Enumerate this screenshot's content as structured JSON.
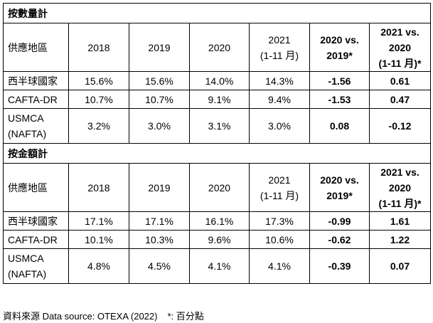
{
  "sections": [
    {
      "title": "按數量計",
      "header": {
        "region": "供應地區",
        "y2018": "2018",
        "y2019": "2019",
        "y2020": "2020",
        "y2021_line1": "2021",
        "y2021_line2": "(1-11 月)",
        "cmp1_line1": "2020 vs.",
        "cmp1_line2": "2019*",
        "cmp2_line1": "2021 vs.",
        "cmp2_line2": "2020",
        "cmp2_line3": "(1-11 月)*"
      },
      "rows": [
        {
          "region": "西半球國家",
          "y2018": "15.6%",
          "y2019": "15.6%",
          "y2020": "14.0%",
          "y2021": "14.3%",
          "cmp1": "-1.56",
          "cmp2": "0.61"
        },
        {
          "region": "CAFTA-DR",
          "y2018": "10.7%",
          "y2019": "10.7%",
          "y2020": "9.1%",
          "y2021": "9.4%",
          "cmp1": "-1.53",
          "cmp2": "0.47"
        },
        {
          "region_line1": "USMCA",
          "region_line2": "(NAFTA)",
          "y2018": "3.2%",
          "y2019": "3.0%",
          "y2020": "3.1%",
          "y2021": "3.0%",
          "cmp1": "0.08",
          "cmp2": "-0.12"
        }
      ]
    },
    {
      "title": "按金額計",
      "header": {
        "region": "供應地區",
        "y2018": "2018",
        "y2019": "2019",
        "y2020": "2020",
        "y2021_line1": "2021",
        "y2021_line2": "(1-11 月)",
        "cmp1_line1": "2020 vs.",
        "cmp1_line2": "2019*",
        "cmp2_line1": "2021 vs.",
        "cmp2_line2": "2020",
        "cmp2_line3": "(1-11 月)*"
      },
      "rows": [
        {
          "region": "西半球國家",
          "y2018": "17.1%",
          "y2019": "17.1%",
          "y2020": "16.1%",
          "y2021": "17.3%",
          "cmp1": "-0.99",
          "cmp2": "1.61"
        },
        {
          "region": "CAFTA-DR",
          "y2018": "10.1%",
          "y2019": "10.3%",
          "y2020": "9.6%",
          "y2021": "10.6%",
          "cmp1": "-0.62",
          "cmp2": "1.22"
        },
        {
          "region_line1": "USMCA",
          "region_line2": "(NAFTA)",
          "y2018": "4.8%",
          "y2019": "4.5%",
          "y2020": "4.1%",
          "y2021": "4.1%",
          "cmp1": "-0.39",
          "cmp2": "0.07"
        }
      ]
    }
  ],
  "footer": {
    "source": "資料來源 Data source: OTEXA (2022)",
    "note": "*: 百分點"
  }
}
